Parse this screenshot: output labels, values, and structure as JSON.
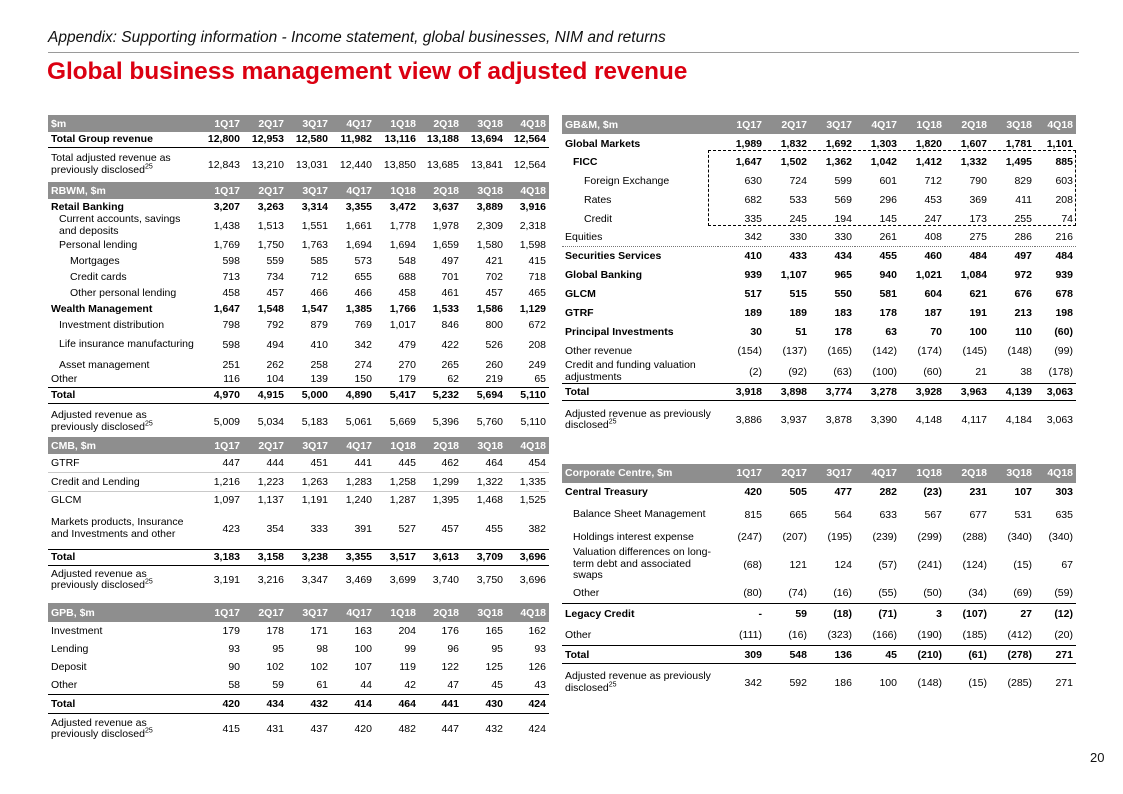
{
  "header": {
    "appendix": "Appendix: Supporting information - Income statement, global businesses, NIM and returns",
    "title": "Global business management view of adjusted revenue"
  },
  "page_number": "20",
  "quarters": [
    "1Q17",
    "2Q17",
    "3Q17",
    "4Q17",
    "1Q18",
    "2Q18",
    "3Q18",
    "4Q18"
  ],
  "group": {
    "header": "$m",
    "rows": [
      {
        "label": "Total Group revenue",
        "values": [
          "12,800",
          "12,953",
          "12,580",
          "11,982",
          "13,116",
          "13,188",
          "13,694",
          "12,564"
        ]
      },
      {
        "label": "Total adjusted revenue as previously disclosed",
        "sup": "25",
        "values": [
          "12,843",
          "13,210",
          "13,031",
          "12,440",
          "13,850",
          "13,685",
          "13,841",
          "12,564"
        ]
      }
    ]
  },
  "rbwm": {
    "header": "RBWM, $m",
    "rows": [
      {
        "label": "Retail Banking",
        "values": [
          "3,207",
          "3,263",
          "3,314",
          "3,355",
          "3,472",
          "3,637",
          "3,889",
          "3,916"
        ]
      },
      {
        "label": "Current accounts, savings and deposits",
        "values": [
          "1,438",
          "1,513",
          "1,551",
          "1,661",
          "1,778",
          "1,978",
          "2,309",
          "2,318"
        ]
      },
      {
        "label": "Personal lending",
        "values": [
          "1,769",
          "1,750",
          "1,763",
          "1,694",
          "1,694",
          "1,659",
          "1,580",
          "1,598"
        ]
      },
      {
        "label": "Mortgages",
        "values": [
          "598",
          "559",
          "585",
          "573",
          "548",
          "497",
          "421",
          "415"
        ]
      },
      {
        "label": "Credit cards",
        "values": [
          "713",
          "734",
          "712",
          "655",
          "688",
          "701",
          "702",
          "718"
        ]
      },
      {
        "label": "Other personal lending",
        "values": [
          "458",
          "457",
          "466",
          "466",
          "458",
          "461",
          "457",
          "465"
        ]
      },
      {
        "label": "Wealth Management",
        "values": [
          "1,647",
          "1,548",
          "1,547",
          "1,385",
          "1,766",
          "1,533",
          "1,586",
          "1,129"
        ]
      },
      {
        "label": "Investment distribution",
        "values": [
          "798",
          "792",
          "879",
          "769",
          "1,017",
          "846",
          "800",
          "672"
        ]
      },
      {
        "label": "Life insurance manufacturing",
        "values": [
          "598",
          "494",
          "410",
          "342",
          "479",
          "422",
          "526",
          "208"
        ]
      },
      {
        "label": "Asset management",
        "values": [
          "251",
          "262",
          "258",
          "274",
          "270",
          "265",
          "260",
          "249"
        ]
      },
      {
        "label": "Other",
        "values": [
          "116",
          "104",
          "139",
          "150",
          "179",
          "62",
          "219",
          "65"
        ]
      },
      {
        "label": "Total",
        "values": [
          "4,970",
          "4,915",
          "5,000",
          "4,890",
          "5,417",
          "5,232",
          "5,694",
          "5,110"
        ]
      },
      {
        "label": "Adjusted revenue as previously disclosed",
        "sup": "25",
        "values": [
          "5,009",
          "5,034",
          "5,183",
          "5,061",
          "5,669",
          "5,396",
          "5,760",
          "5,110"
        ]
      }
    ]
  },
  "cmb": {
    "header": "CMB, $m",
    "rows": [
      {
        "label": "GTRF",
        "values": [
          "447",
          "444",
          "451",
          "441",
          "445",
          "462",
          "464",
          "454"
        ]
      },
      {
        "label": "Credit and Lending",
        "values": [
          "1,216",
          "1,223",
          "1,263",
          "1,283",
          "1,258",
          "1,299",
          "1,322",
          "1,335"
        ]
      },
      {
        "label": "GLCM",
        "values": [
          "1,097",
          "1,137",
          "1,191",
          "1,240",
          "1,287",
          "1,395",
          "1,468",
          "1,525"
        ]
      },
      {
        "label": "Markets products, Insurance and Investments and other",
        "values": [
          "423",
          "354",
          "333",
          "391",
          "527",
          "457",
          "455",
          "382"
        ]
      },
      {
        "label": "Total",
        "values": [
          "3,183",
          "3,158",
          "3,238",
          "3,355",
          "3,517",
          "3,613",
          "3,709",
          "3,696"
        ]
      },
      {
        "label": "Adjusted revenue as previously disclosed",
        "sup": "25",
        "values": [
          "3,191",
          "3,216",
          "3,347",
          "3,469",
          "3,699",
          "3,740",
          "3,750",
          "3,696"
        ]
      }
    ]
  },
  "gpb": {
    "header": "GPB, $m",
    "rows": [
      {
        "label": "Investment",
        "values": [
          "179",
          "178",
          "171",
          "163",
          "204",
          "176",
          "165",
          "162"
        ]
      },
      {
        "label": "Lending",
        "values": [
          "93",
          "95",
          "98",
          "100",
          "99",
          "96",
          "95",
          "93"
        ]
      },
      {
        "label": "Deposit",
        "values": [
          "90",
          "102",
          "102",
          "107",
          "119",
          "122",
          "125",
          "126"
        ]
      },
      {
        "label": "Other",
        "values": [
          "58",
          "59",
          "61",
          "44",
          "42",
          "47",
          "45",
          "43"
        ]
      },
      {
        "label": "Total",
        "values": [
          "420",
          "434",
          "432",
          "414",
          "464",
          "441",
          "430",
          "424"
        ]
      },
      {
        "label": "Adjusted revenue as previously disclosed",
        "sup": "25",
        "values": [
          "415",
          "431",
          "437",
          "420",
          "482",
          "447",
          "432",
          "424"
        ]
      }
    ]
  },
  "gbm": {
    "header": "GB&M, $m",
    "rows": [
      {
        "label": "Global Markets",
        "values": [
          "1,989",
          "1,832",
          "1,692",
          "1,303",
          "1,820",
          "1,607",
          "1,781",
          "1,101"
        ]
      },
      {
        "label": "FICC",
        "values": [
          "1,647",
          "1,502",
          "1,362",
          "1,042",
          "1,412",
          "1,332",
          "1,495",
          "885"
        ]
      },
      {
        "label": "Foreign Exchange",
        "values": [
          "630",
          "724",
          "599",
          "601",
          "712",
          "790",
          "829",
          "603"
        ]
      },
      {
        "label": "Rates",
        "values": [
          "682",
          "533",
          "569",
          "296",
          "453",
          "369",
          "411",
          "208"
        ]
      },
      {
        "label": "Credit",
        "values": [
          "335",
          "245",
          "194",
          "145",
          "247",
          "173",
          "255",
          "74"
        ]
      },
      {
        "label": "Equities",
        "values": [
          "342",
          "330",
          "330",
          "261",
          "408",
          "275",
          "286",
          "216"
        ]
      },
      {
        "label": "Securities Services",
        "values": [
          "410",
          "433",
          "434",
          "455",
          "460",
          "484",
          "497",
          "484"
        ]
      },
      {
        "label": "Global Banking",
        "values": [
          "939",
          "1,107",
          "965",
          "940",
          "1,021",
          "1,084",
          "972",
          "939"
        ]
      },
      {
        "label": "GLCM",
        "values": [
          "517",
          "515",
          "550",
          "581",
          "604",
          "621",
          "676",
          "678"
        ]
      },
      {
        "label": "GTRF",
        "values": [
          "189",
          "189",
          "183",
          "178",
          "187",
          "191",
          "213",
          "198"
        ]
      },
      {
        "label": "Principal Investments",
        "values": [
          "30",
          "51",
          "178",
          "63",
          "70",
          "100",
          "110",
          "(60)"
        ]
      },
      {
        "label": "Other revenue",
        "values": [
          "(154)",
          "(137)",
          "(165)",
          "(142)",
          "(174)",
          "(145)",
          "(148)",
          "(99)"
        ]
      },
      {
        "label": "Credit and funding valuation adjustments",
        "values": [
          "(2)",
          "(92)",
          "(63)",
          "(100)",
          "(60)",
          "21",
          "38",
          "(178)"
        ]
      },
      {
        "label": "Total",
        "values": [
          "3,918",
          "3,898",
          "3,774",
          "3,278",
          "3,928",
          "3,963",
          "4,139",
          "3,063"
        ]
      },
      {
        "label": "Adjusted revenue as previously disclosed",
        "sup": "25",
        "values": [
          "3,886",
          "3,937",
          "3,878",
          "3,390",
          "4,148",
          "4,117",
          "4,184",
          "3,063"
        ]
      }
    ]
  },
  "cc": {
    "header": "Corporate Centre, $m",
    "rows": [
      {
        "label": "Central Treasury",
        "values": [
          "420",
          "505",
          "477",
          "282",
          "(23)",
          "231",
          "107",
          "303"
        ]
      },
      {
        "label": "Balance Sheet Management",
        "values": [
          "815",
          "665",
          "564",
          "633",
          "567",
          "677",
          "531",
          "635"
        ]
      },
      {
        "label": "Holdings interest expense",
        "values": [
          "(247)",
          "(207)",
          "(195)",
          "(239)",
          "(299)",
          "(288)",
          "(340)",
          "(340)"
        ]
      },
      {
        "label": "Valuation differences on long-term debt and associated swaps",
        "values": [
          "(68)",
          "121",
          "124",
          "(57)",
          "(241)",
          "(124)",
          "(15)",
          "67"
        ]
      },
      {
        "label": "Other",
        "values": [
          "(80)",
          "(74)",
          "(16)",
          "(55)",
          "(50)",
          "(34)",
          "(69)",
          "(59)"
        ]
      },
      {
        "label": "Legacy Credit",
        "values": [
          "-",
          "59",
          "(18)",
          "(71)",
          "3",
          "(107)",
          "27",
          "(12)"
        ]
      },
      {
        "label": "Other",
        "values": [
          "(111)",
          "(16)",
          "(323)",
          "(166)",
          "(190)",
          "(185)",
          "(412)",
          "(20)"
        ]
      },
      {
        "label": "Total",
        "values": [
          "309",
          "548",
          "136",
          "45",
          "(210)",
          "(61)",
          "(278)",
          "271"
        ]
      },
      {
        "label": "Adjusted revenue as previously disclosed",
        "sup": "25",
        "values": [
          "342",
          "592",
          "186",
          "100",
          "(148)",
          "(15)",
          "(285)",
          "271"
        ]
      }
    ]
  }
}
